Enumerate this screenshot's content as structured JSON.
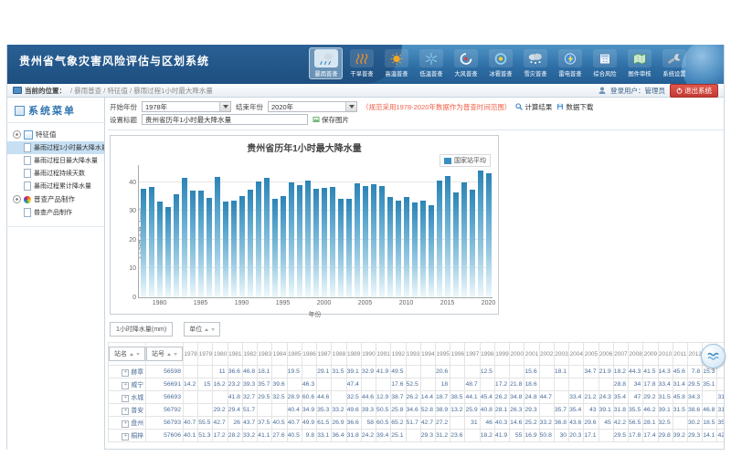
{
  "window": {
    "title": "贵州省气象灾害风险评估与区划系统"
  },
  "toolbar": {
    "items": [
      {
        "label": "暴雨普查",
        "icon": "rain-cloud",
        "active": true
      },
      {
        "label": "干旱普查",
        "icon": "heat-waves",
        "active": false
      },
      {
        "label": "高温普查",
        "icon": "sun",
        "active": false
      },
      {
        "label": "低温普查",
        "icon": "snowflake",
        "active": false
      },
      {
        "label": "大风普查",
        "icon": "wind",
        "active": false
      },
      {
        "label": "冰雹普查",
        "icon": "hail",
        "active": false
      },
      {
        "label": "雪灾普查",
        "icon": "snow-cloud",
        "active": false
      },
      {
        "label": "雷电普查",
        "icon": "lightning",
        "active": false
      },
      {
        "label": "综合风险",
        "icon": "calculator",
        "active": false
      },
      {
        "label": "图件审核",
        "icon": "map",
        "active": false
      },
      {
        "label": "系统设置",
        "icon": "wrench",
        "active": false
      }
    ]
  },
  "breadcrumb": {
    "prefix": "当前的位置：",
    "path": "/ 暴雨普查 / 特征值 / 暴雨过程1小时最大降水量"
  },
  "user": {
    "label": "登录用户：管理员",
    "logout_label": "退出系统"
  },
  "sidebar": {
    "title": "系统菜单",
    "group1": {
      "label": "特征值",
      "items": [
        "暴雨过程1小时最大降水量",
        "暴雨过程日最大降水量",
        "暴雨过程持续天数",
        "暴雨过程累计降水量"
      ],
      "selected_index": 0
    },
    "group2": {
      "label": "普查产品制作",
      "items": [
        "普查产品制作"
      ]
    }
  },
  "filters": {
    "start_label": "开始年份",
    "start_value": "1978年",
    "end_label": "结束年份",
    "end_value": "2020年",
    "note": "（规范采用1978-2020年数据作为普查时间范围）",
    "calc_label": "计算结果",
    "download_label": "数据下载",
    "title_label": "设置标题",
    "title_value": "贵州省历年1小时最大降水量",
    "save_image_label": "保存图片"
  },
  "chart_data": {
    "type": "bar",
    "title": "贵州省历年1小时最大降水量",
    "legend": "国家站平均",
    "xlabel": "年份",
    "ylabel": "1小时降水量（mm）",
    "ylim": [
      0,
      46
    ],
    "yticks": [
      0,
      10,
      20,
      30,
      40
    ],
    "grid": true,
    "legend_position": "top-right",
    "bar_color": "#3a8fc0",
    "x": [
      1978,
      1979,
      1980,
      1981,
      1982,
      1983,
      1984,
      1985,
      1986,
      1987,
      1988,
      1989,
      1990,
      1991,
      1992,
      1993,
      1994,
      1995,
      1996,
      1997,
      1998,
      1999,
      2000,
      2001,
      2002,
      2003,
      2004,
      2005,
      2006,
      2007,
      2008,
      2009,
      2010,
      2011,
      2012,
      2013,
      2014,
      2015,
      2016,
      2017,
      2018,
      2019,
      2020
    ],
    "values": [
      37.6,
      38.3,
      33.2,
      31.5,
      35.9,
      41.7,
      37,
      37,
      34.7,
      41.8,
      33.2,
      33.5,
      35.1,
      37.4,
      40.3,
      41.5,
      34.2,
      35.1,
      40,
      38.9,
      40.7,
      37.7,
      38,
      38.3,
      34.4,
      34.3,
      39.6,
      38.8,
      39.4,
      38.6,
      34.8,
      33.7,
      35,
      33,
      33.5,
      32.2,
      40.7,
      42.2,
      36.4,
      39.9,
      37.5,
      44.1,
      43.3
    ]
  },
  "grid": {
    "measure_tab": "1小时降水量(mm)",
    "pivot_field": "单位",
    "name_col": "站名",
    "id_col": "站号",
    "years": [
      1978,
      1979,
      1980,
      1981,
      1982,
      1983,
      1984,
      1985,
      1986,
      1987,
      1988,
      1989,
      1990,
      1991,
      1992,
      1993,
      1994,
      1995,
      1996,
      1997,
      1998,
      1999,
      2000,
      2001,
      2002,
      2003,
      2004,
      2005,
      2006,
      2007,
      2008,
      2009,
      2010,
      2011,
      2012,
      2013,
      2014,
      2015
    ],
    "rows": [
      {
        "name": "赫章",
        "id": "56598",
        "values": [
          "",
          "",
          "11",
          "36.6",
          "46.8",
          "18.1",
          "",
          "19.5",
          "",
          "29.1",
          "31.5",
          "39.1",
          "32.9",
          "41.9",
          "49.5",
          "",
          "",
          "20.6",
          "",
          "",
          "12.5",
          "",
          "",
          "15.6",
          "",
          "18.1",
          "",
          "34.7",
          "21.9",
          "18.2",
          "44.3",
          "41.5",
          "14.3",
          "45.6",
          "7.8",
          "15.3",
          "",
          ""
        ]
      },
      {
        "name": "威宁",
        "id": "56691",
        "values": [
          "14.2",
          "15",
          "16.2",
          "23.2",
          "39.3",
          "35.7",
          "39.6",
          "",
          "46.3",
          "",
          "",
          "47.4",
          "",
          "",
          "17.6",
          "52.5",
          "",
          "18",
          "",
          "48.7",
          "",
          "17.2",
          "21.8",
          "18.6",
          "",
          "",
          "",
          "",
          "",
          "28.8",
          "34",
          "17.8",
          "33.4",
          "31.4",
          "29.5",
          "35.1",
          "",
          ""
        ]
      },
      {
        "name": "水城",
        "id": "56693",
        "values": [
          "",
          "",
          "",
          "41.8",
          "32.7",
          "29.5",
          "32.5",
          "28.9",
          "60.6",
          "44.6",
          "",
          "32.5",
          "44.6",
          "12.9",
          "38.7",
          "26.2",
          "14.4",
          "18.7",
          "38.5",
          "44.1",
          "45.4",
          "26.2",
          "34.8",
          "24.8",
          "44.7",
          "",
          "33.4",
          "21.2",
          "24.3",
          "35.4",
          "47",
          "29.2",
          "31.5",
          "45.8",
          "34.3",
          "",
          "31.9",
          ""
        ]
      },
      {
        "name": "普安",
        "id": "56792",
        "values": [
          "",
          "",
          "29.2",
          "29.4",
          "51.7",
          "",
          "",
          "40.4",
          "34.9",
          "35.3",
          "33.2",
          "49.6",
          "39.3",
          "50.5",
          "25.8",
          "34.6",
          "52.8",
          "38.9",
          "13.2",
          "25.9",
          "40.8",
          "28.1",
          "26.3",
          "29.3",
          "",
          "35.7",
          "35.4",
          "43",
          "39.1",
          "31.8",
          "35.5",
          "46.2",
          "39.1",
          "31.5",
          "38.6",
          "46.8",
          "31.1",
          ""
        ]
      },
      {
        "name": "盘州",
        "id": "56793",
        "values": [
          "40.7",
          "55.5",
          "42.7",
          "26",
          "43.7",
          "37.5",
          "40.5",
          "40.7",
          "49.9",
          "61.5",
          "26.9",
          "36.6",
          "58",
          "60.5",
          "65.2",
          "51.7",
          "42.7",
          "27.2",
          "",
          "31",
          "46",
          "40.3",
          "14.6",
          "25.2",
          "33.2",
          "36.8",
          "43.6",
          "29.6",
          "45",
          "42.2",
          "56.5",
          "28.1",
          "32.5",
          "",
          "30.2",
          "18.5",
          "35.8",
          ""
        ]
      },
      {
        "name": "桐梓",
        "id": "57606",
        "values": [
          "40.1",
          "51.3",
          "17.2",
          "28.2",
          "33.2",
          "41.1",
          "27.6",
          "40.5",
          "9.8",
          "33.1",
          "36.4",
          "31.8",
          "24.2",
          "39.4",
          "25.1",
          "",
          "29.3",
          "31.2",
          "23.6",
          "",
          "18.2",
          "41.9",
          "55",
          "16.9",
          "50.8",
          "30",
          "20.3",
          "17.1",
          "",
          "29.5",
          "17.8",
          "17.4",
          "29.8",
          "39.2",
          "29.3",
          "14.1",
          "42.1",
          ""
        ]
      }
    ]
  }
}
